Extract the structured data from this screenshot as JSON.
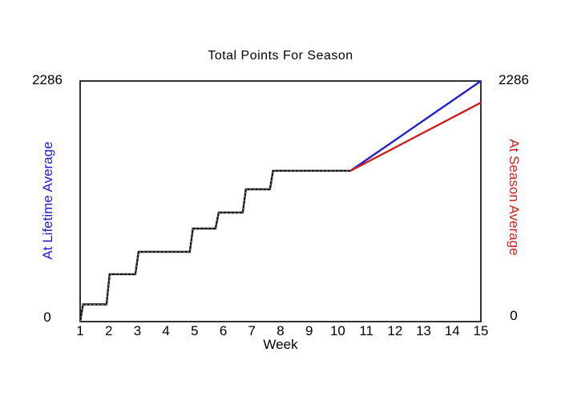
{
  "chart_data": {
    "type": "line",
    "title": "Total Points For Season",
    "xlabel": "Week",
    "x_ticks": [
      "1",
      "2",
      "3",
      "4",
      "5",
      "6",
      "7",
      "8",
      "9",
      "10",
      "11",
      "12",
      "13",
      "14",
      "15"
    ],
    "xlim": [
      1,
      15
    ],
    "ylim": [
      0,
      2286
    ],
    "grid": false,
    "legend": "none",
    "left_axis": {
      "label": "At Lifetime Average",
      "color": "#2020cc",
      "top_tick": "2286",
      "bottom_tick": "0"
    },
    "right_axis": {
      "label": "At Season Average",
      "color": "#cc2020",
      "top_tick": "2286",
      "bottom_tick": "0"
    },
    "series": [
      {
        "name": "actual-cumulative-points",
        "color": "#111111",
        "style": "step",
        "points": [
          [
            1.0,
            0
          ],
          [
            1.1,
            164
          ],
          [
            1.92,
            164
          ],
          [
            2.03,
            450
          ],
          [
            2.93,
            450
          ],
          [
            3.04,
            663
          ],
          [
            4.83,
            663
          ],
          [
            4.94,
            884
          ],
          [
            5.73,
            884
          ],
          [
            5.84,
            1036
          ],
          [
            6.68,
            1036
          ],
          [
            6.79,
            1257
          ],
          [
            7.63,
            1257
          ],
          [
            7.74,
            1433
          ],
          [
            10.45,
            1433
          ]
        ]
      },
      {
        "name": "projection-at-lifetime-average",
        "color": "#2020cc",
        "style": "line",
        "points": [
          [
            10.45,
            1433
          ],
          [
            15,
            2286
          ]
        ]
      },
      {
        "name": "projection-at-season-average",
        "color": "#cc2020",
        "style": "line",
        "points": [
          [
            10.45,
            1433
          ],
          [
            15,
            2080
          ]
        ]
      }
    ]
  }
}
